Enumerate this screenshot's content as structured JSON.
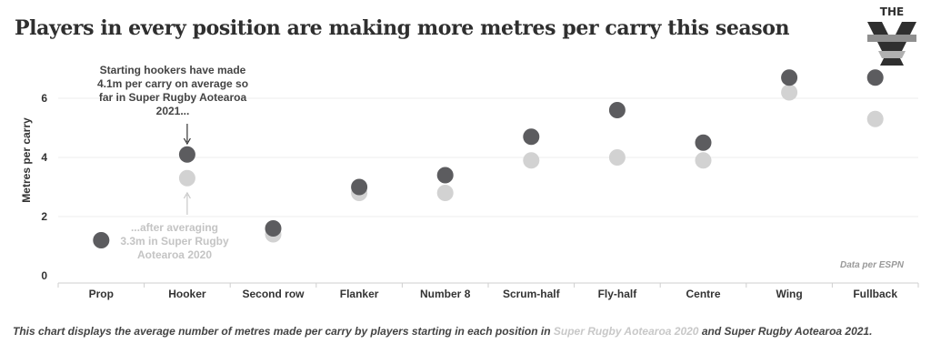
{
  "title": "Players in every position are making more metres per carry this season",
  "logo_text": "THE XV",
  "source_note": "Data per ESPN",
  "caption": {
    "prefix": "This chart displays the average number of metres made per carry by players starting in each position in ",
    "season_2020": "Super Rugby Aotearoa 2020",
    "middle": " and ",
    "season_2021": "Super Rugby Aotearoa 2021",
    "suffix": "."
  },
  "annotations": {
    "hooker_2021": "Starting hookers have made 4.1m per carry on average so far in Super Rugby Aotearoa 2021...",
    "hooker_2020": "...after averaging 3.3m in Super Rugby Aotearoa 2020"
  },
  "colors": {
    "series_2021": "#5c5c5f",
    "series_2020": "#d2d2d2",
    "title": "#2f2f2f",
    "grid": "#ececec"
  },
  "chart_data": {
    "type": "scatter",
    "title": "Players in every position are making more metres per carry this season",
    "xlabel": "",
    "ylabel": "Metres per carry",
    "ylim": [
      0,
      7.5
    ],
    "yticks": [
      0,
      2,
      4,
      6
    ],
    "grid": true,
    "categories": [
      "Prop",
      "Hooker",
      "Second row",
      "Flanker",
      "Number 8",
      "Scrum-half",
      "Fly-half",
      "Centre",
      "Wing",
      "Fullback"
    ],
    "series": [
      {
        "name": "Super Rugby Aotearoa 2020",
        "values": [
          1.2,
          3.3,
          1.4,
          2.8,
          2.8,
          3.9,
          4.0,
          3.9,
          6.2,
          5.3
        ]
      },
      {
        "name": "Super Rugby Aotearoa 2021",
        "values": [
          1.2,
          4.1,
          1.6,
          3.0,
          3.4,
          4.7,
          5.6,
          4.5,
          6.7,
          6.7
        ]
      }
    ]
  }
}
